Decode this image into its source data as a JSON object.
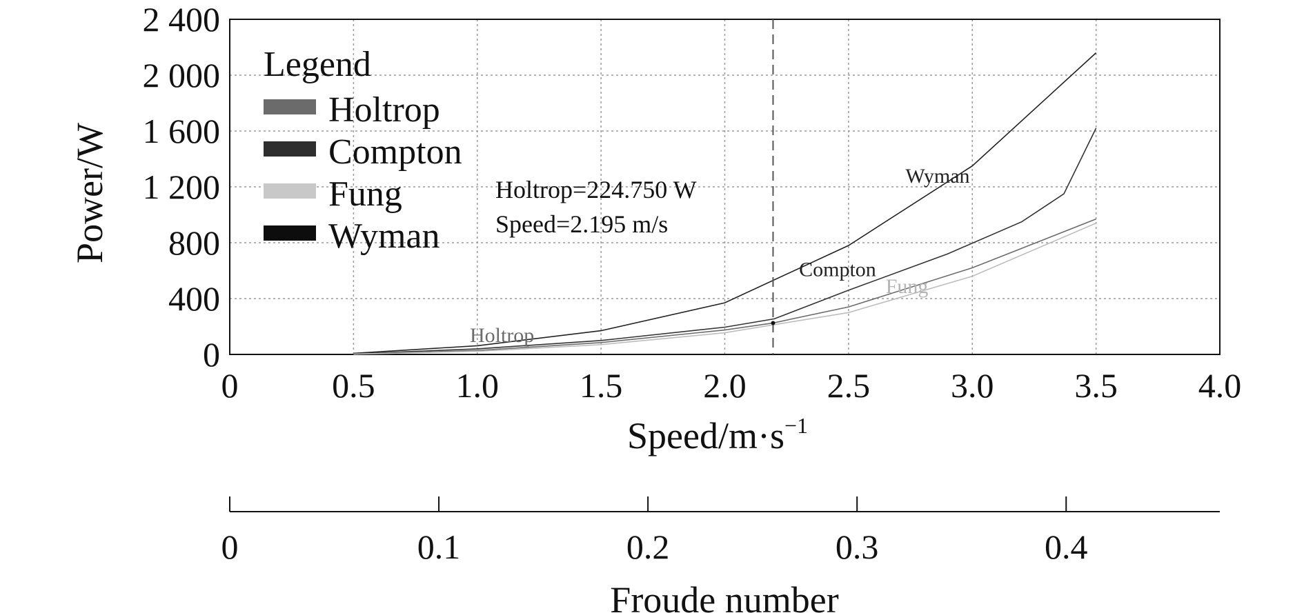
{
  "chart_data": {
    "type": "line",
    "title": "",
    "xlabel": "Speed/m·s",
    "xlabel_superscript": "−1",
    "ylabel": "Power/W",
    "secondary_xlabel": "Froude number",
    "xlim": [
      0,
      4.0
    ],
    "ylim": [
      0,
      2400
    ],
    "x_ticks": [
      "0",
      "0.5",
      "1.0",
      "1.5",
      "2.0",
      "2.5",
      "3.0",
      "3.5",
      "4.0"
    ],
    "y_ticks": [
      "0",
      "400",
      "800",
      "1 200",
      "1 600",
      "2 000",
      "2 400"
    ],
    "secondary_ticks": [
      "0",
      "0.1",
      "0.2",
      "0.3",
      "0.4"
    ],
    "secondary_tick_values": [
      0,
      0.1,
      0.2,
      0.3,
      0.4
    ],
    "secondary_xlim": [
      0,
      0.4735
    ],
    "grid": true,
    "legend": {
      "title": "Legend",
      "placement": "top-left",
      "items": [
        {
          "name": "Holtrop",
          "color": "#6b6b6b"
        },
        {
          "name": "Compton",
          "color": "#2e2e2e"
        },
        {
          "name": "Fung",
          "color": "#c8c8c8"
        },
        {
          "name": "Wyman",
          "color": "#0d0d0d"
        }
      ]
    },
    "marker_line_x": 2.195,
    "annotation_lines": [
      "Holtrop=224.750 W",
      "Speed=2.195 m/s"
    ],
    "series": [
      {
        "name": "Wyman",
        "color": "#222222",
        "x": [
          0.5,
          1.0,
          1.5,
          2.0,
          2.5,
          3.0,
          3.5
        ],
        "y": [
          8,
          62,
          170,
          370,
          780,
          1350,
          2160
        ]
      },
      {
        "name": "Compton",
        "color": "#333333",
        "x": [
          0.5,
          1.0,
          1.5,
          2.0,
          2.2,
          2.5,
          2.9,
          3.2,
          3.37,
          3.5
        ],
        "y": [
          4,
          40,
          100,
          195,
          255,
          460,
          720,
          950,
          1150,
          1620
        ]
      },
      {
        "name": "Holtrop",
        "color": "#6b6b6b",
        "x": [
          0.5,
          1.0,
          1.5,
          2.0,
          2.195,
          2.5,
          3.0,
          3.5
        ],
        "y": [
          3,
          28,
          85,
          175,
          225,
          340,
          620,
          970
        ]
      },
      {
        "name": "Fung",
        "color": "#bdbdbd",
        "x": [
          0.5,
          1.0,
          1.5,
          2.0,
          2.5,
          3.0,
          3.5
        ],
        "y": [
          2,
          22,
          70,
          155,
          300,
          560,
          940
        ]
      }
    ],
    "series_labels": [
      {
        "text": "Wyman",
        "color": "#222222",
        "x": 2.73,
        "y": 1230
      },
      {
        "text": "Compton",
        "color": "#222222",
        "x": 2.3,
        "y": 560
      },
      {
        "text": "Fung",
        "color": "#b5b5b5",
        "x": 2.65,
        "y": 440
      },
      {
        "text": "Holtrop",
        "color": "#6b6b6b",
        "x": 0.97,
        "y": 90
      }
    ]
  }
}
